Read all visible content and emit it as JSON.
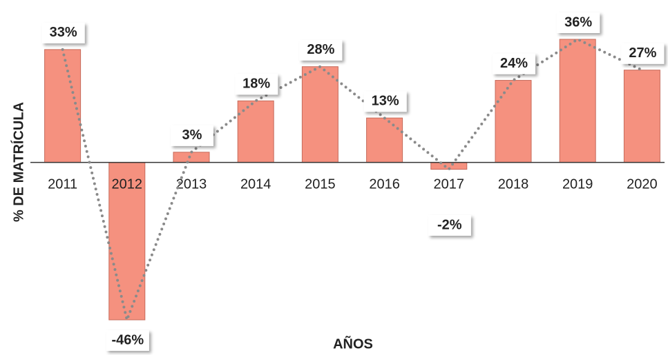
{
  "chart_data": {
    "type": "bar",
    "y_label": "% DE MATRÍCULA",
    "x_label": "AÑOS",
    "categories": [
      "2011",
      "2012",
      "2013",
      "2014",
      "2015",
      "2016",
      "2017",
      "2018",
      "2019",
      "2020"
    ],
    "values": [
      33,
      -46,
      3,
      18,
      28,
      13,
      -2,
      24,
      36,
      27
    ],
    "value_labels": [
      "33%",
      "-46%",
      "3%",
      "18%",
      "28%",
      "13%",
      "-2%",
      "24%",
      "36%",
      "27%"
    ],
    "color": "#f5917f",
    "line_color": "#8a8a8a"
  }
}
